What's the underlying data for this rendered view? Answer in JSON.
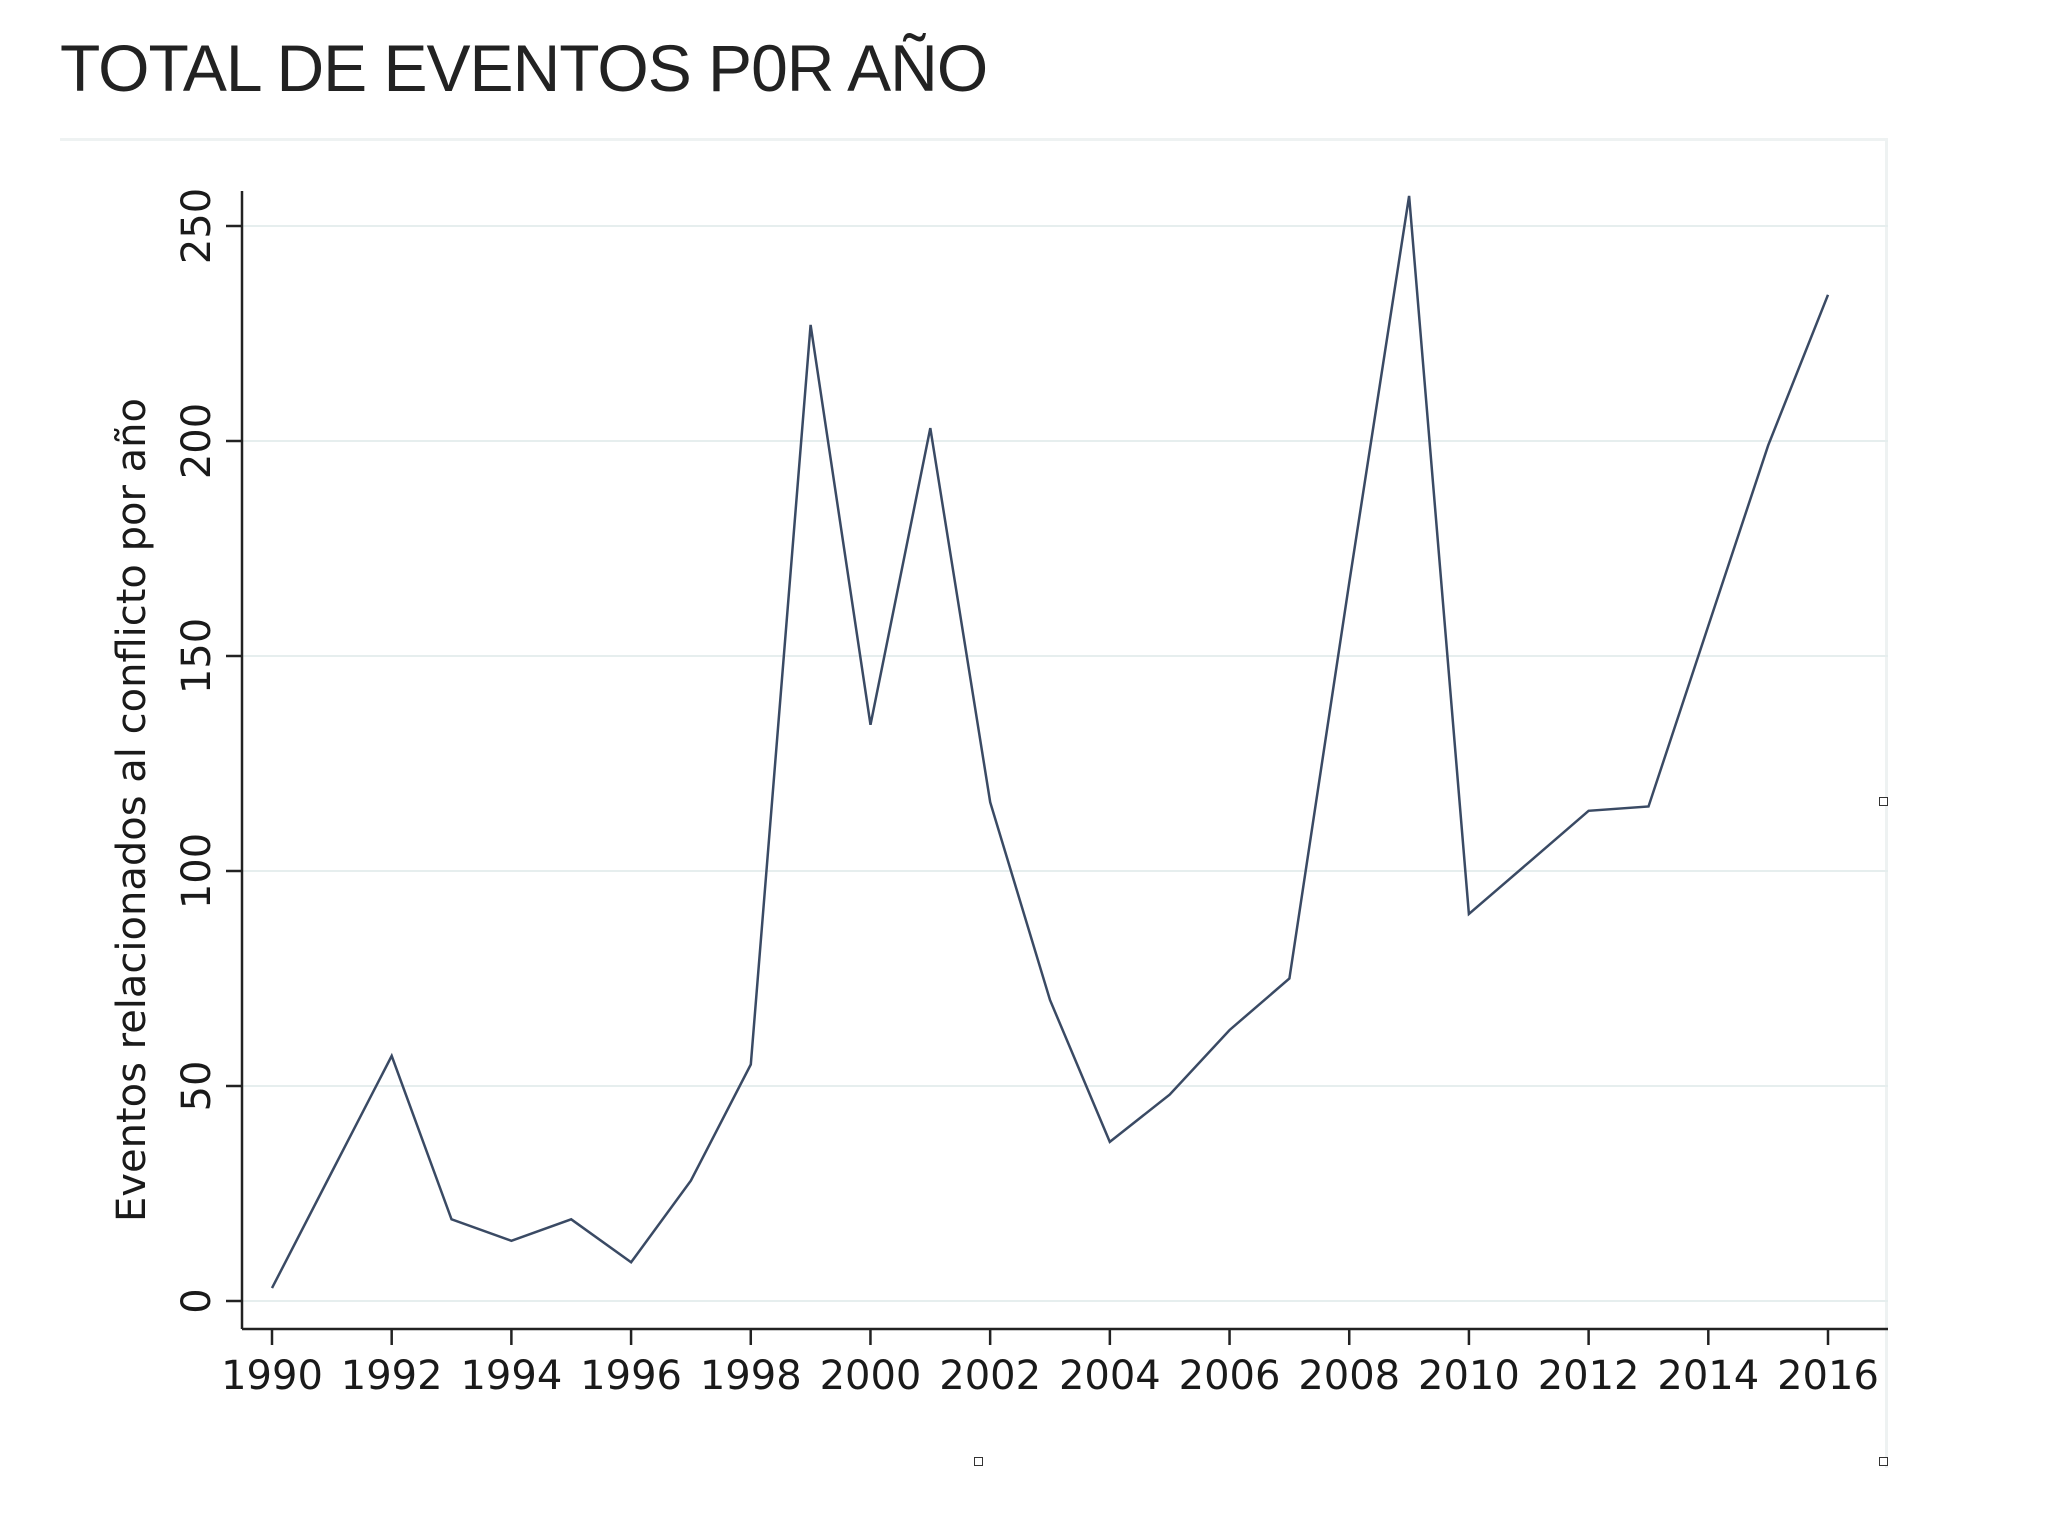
{
  "slide": {
    "title": "TOTAL DE EVENTOS P0R AÑO"
  },
  "chart_data": {
    "type": "line",
    "title": "",
    "xlabel": "",
    "ylabel": "Eventos relacionados al conflicto por año",
    "xlim": [
      1990,
      2016
    ],
    "ylim": [
      0,
      260
    ],
    "grid": true,
    "legend": "none",
    "xticks": [
      1990,
      1992,
      1994,
      1996,
      1998,
      2000,
      2002,
      2004,
      2006,
      2008,
      2010,
      2012,
      2014,
      2016
    ],
    "yticks": [
      0,
      50,
      100,
      150,
      200,
      250
    ],
    "line_color": "#3a4a64",
    "grid_color": "#e6eeee",
    "series": [
      {
        "x": [
          1990,
          1991,
          1992,
          1993,
          1994,
          1995,
          1996,
          1997,
          1998,
          1999,
          2000,
          2001,
          2002,
          2003,
          2004,
          2005,
          2006,
          2007,
          2008,
          2009,
          2010,
          2011,
          2012,
          2013,
          2014,
          2015,
          2016
        ],
        "values": [
          3,
          30,
          57,
          19,
          14,
          19,
          9,
          28,
          55,
          227,
          134,
          203,
          116,
          70,
          37,
          48,
          63,
          75,
          167,
          257,
          90,
          102,
          114,
          115,
          157,
          199,
          234
        ]
      }
    ]
  }
}
